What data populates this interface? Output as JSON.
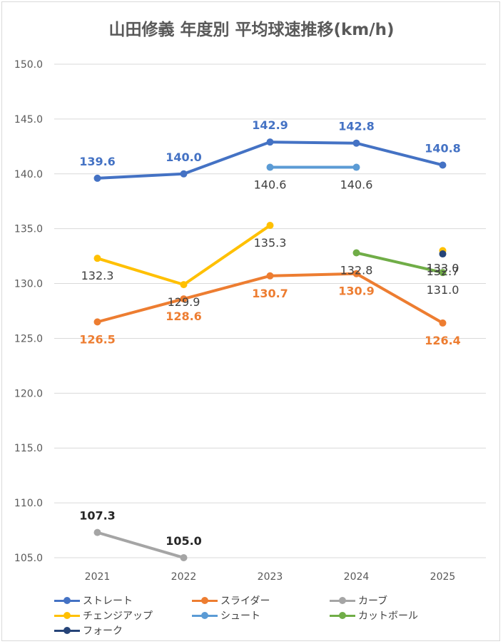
{
  "chart_data": {
    "type": "line",
    "title": "山田修義 年度別 平均球速推移(km/h)",
    "categories": [
      "2021",
      "2022",
      "2023",
      "2024",
      "2025"
    ],
    "ylim": [
      105,
      150
    ],
    "yticks": [
      "150.0",
      "145.0",
      "140.0",
      "135.0",
      "130.0",
      "125.0",
      "120.0",
      "115.0",
      "110.0",
      "105.0"
    ],
    "grid": true,
    "legend_position": "bottom",
    "series": [
      {
        "name": "ストレート",
        "color": "#4472c4",
        "values": [
          139.6,
          140.0,
          142.9,
          142.8,
          140.8
        ],
        "labels": [
          "139.6",
          "140.0",
          "142.9",
          "142.8",
          "140.8"
        ],
        "label_color": "#4472c4",
        "label_pos": "above"
      },
      {
        "name": "スライダー",
        "color": "#ed7d31",
        "values": [
          126.5,
          128.6,
          130.7,
          130.9,
          126.4
        ],
        "labels": [
          "126.5",
          "128.6",
          "130.7",
          "130.9",
          "126.4"
        ],
        "label_color": "#ed7d31",
        "label_pos": "below"
      },
      {
        "name": "カーブ",
        "color": "#a5a5a5",
        "values": [
          107.3,
          105.0,
          null,
          null,
          null
        ],
        "labels": [
          "107.3",
          "105.0",
          "",
          "",
          ""
        ],
        "label_color": "#262626",
        "label_pos": "above"
      },
      {
        "name": "チェンジアップ",
        "color": "#ffc000",
        "values": [
          132.3,
          129.9,
          135.3,
          null,
          133.0
        ],
        "labels": [
          "132.3",
          "129.9",
          "135.3",
          "",
          "133.0"
        ],
        "label_color": "#404040",
        "label_pos": "below"
      },
      {
        "name": "シュート",
        "color": "#5b9bd5",
        "values": [
          null,
          null,
          140.6,
          140.6,
          null
        ],
        "labels": [
          "",
          "",
          "140.6",
          "140.6",
          ""
        ],
        "label_color": "#404040",
        "label_pos": "below"
      },
      {
        "name": "カットボール",
        "color": "#70ad47",
        "values": [
          null,
          null,
          null,
          132.8,
          131.0
        ],
        "labels": [
          "",
          "",
          "",
          "132.8",
          "131.0"
        ],
        "label_color": "#404040",
        "label_pos": "below"
      },
      {
        "name": "フォーク",
        "color": "#264478",
        "values": [
          null,
          null,
          null,
          null,
          132.7
        ],
        "labels": [
          "",
          "",
          "",
          "",
          "132.7"
        ],
        "label_color": "#404040",
        "label_pos": "below"
      }
    ]
  }
}
